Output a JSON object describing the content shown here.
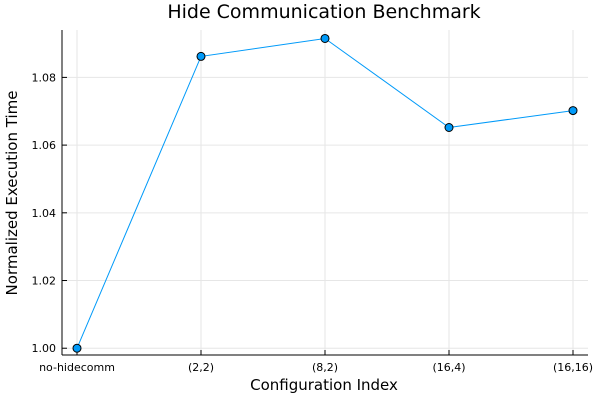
{
  "chart_data": {
    "type": "line",
    "title": "Hide Communication Benchmark",
    "xlabel": "Configuration Index",
    "ylabel": "Normalized Execution Time",
    "categories": [
      "no-hidecomm",
      "(2,2)",
      "(8,2)",
      "(16,4)",
      "(16,16)"
    ],
    "series": [
      {
        "values": [
          1.0,
          1.0862,
          1.0915,
          1.0652,
          1.0702
        ]
      }
    ],
    "ylim": [
      0.998,
      1.094
    ],
    "yticks": [
      1.0,
      1.02,
      1.04,
      1.06,
      1.08
    ],
    "ytick_labels": [
      "1.00",
      "1.02",
      "1.04",
      "1.06",
      "1.08"
    ],
    "grid": true,
    "legend": "none",
    "colors": {
      "series": "#009af9",
      "marker_edge": "#000000"
    }
  }
}
